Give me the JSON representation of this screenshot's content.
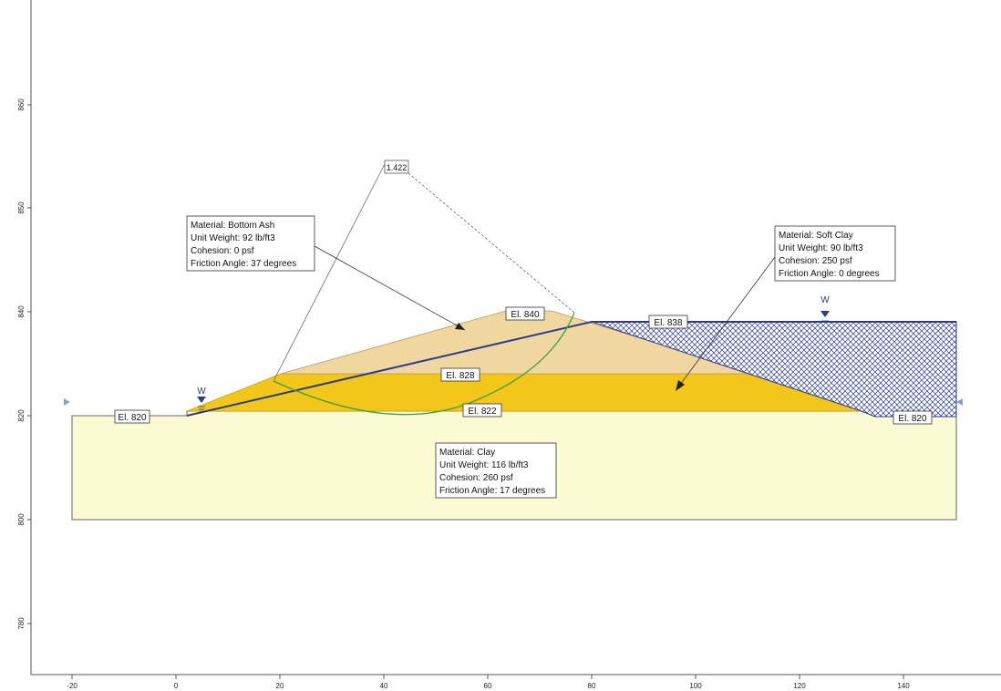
{
  "colors": {
    "bottom_ash": "#f0d7a0",
    "soft_clay": "#f3c71a",
    "clay": "#fbfbd3",
    "water": "#1f3a8a",
    "slip_surface": "#3aa13a",
    "frame": "#777777"
  },
  "axes": {
    "x_ticks": [
      "-20",
      "0",
      "20",
      "40",
      "60",
      "80",
      "100",
      "120",
      "140"
    ],
    "y_ticks": [
      "860",
      "850",
      "840",
      "820",
      "800",
      "780"
    ]
  },
  "factor_of_safety": "1.422",
  "elevation_labels": {
    "el_820_left": "El. 820",
    "el_840": "El. 840",
    "el_838": "El. 838",
    "el_828": "El. 828",
    "el_822": "El. 822",
    "el_820_right": "El. 820"
  },
  "water_marker": "W",
  "materials": {
    "bottom_ash": {
      "name": "Material: Bottom Ash",
      "unit_weight": "Unit Weight: 92 lb/ft3",
      "cohesion": "Cohesion: 0 psf",
      "friction_angle": "Friction Angle: 37 degrees"
    },
    "soft_clay": {
      "name": "Material: Soft Clay",
      "unit_weight": "Unit Weight: 90 lb/ft3",
      "cohesion": "Cohesion: 250 psf",
      "friction_angle": "Friction Angle: 0 degrees"
    },
    "clay": {
      "name": "Material: Clay",
      "unit_weight": "Unit Weight: 116 lb/ft3",
      "cohesion": "Cohesion: 260 psf",
      "friction_angle": "Friction Angle: 17 degrees"
    }
  }
}
